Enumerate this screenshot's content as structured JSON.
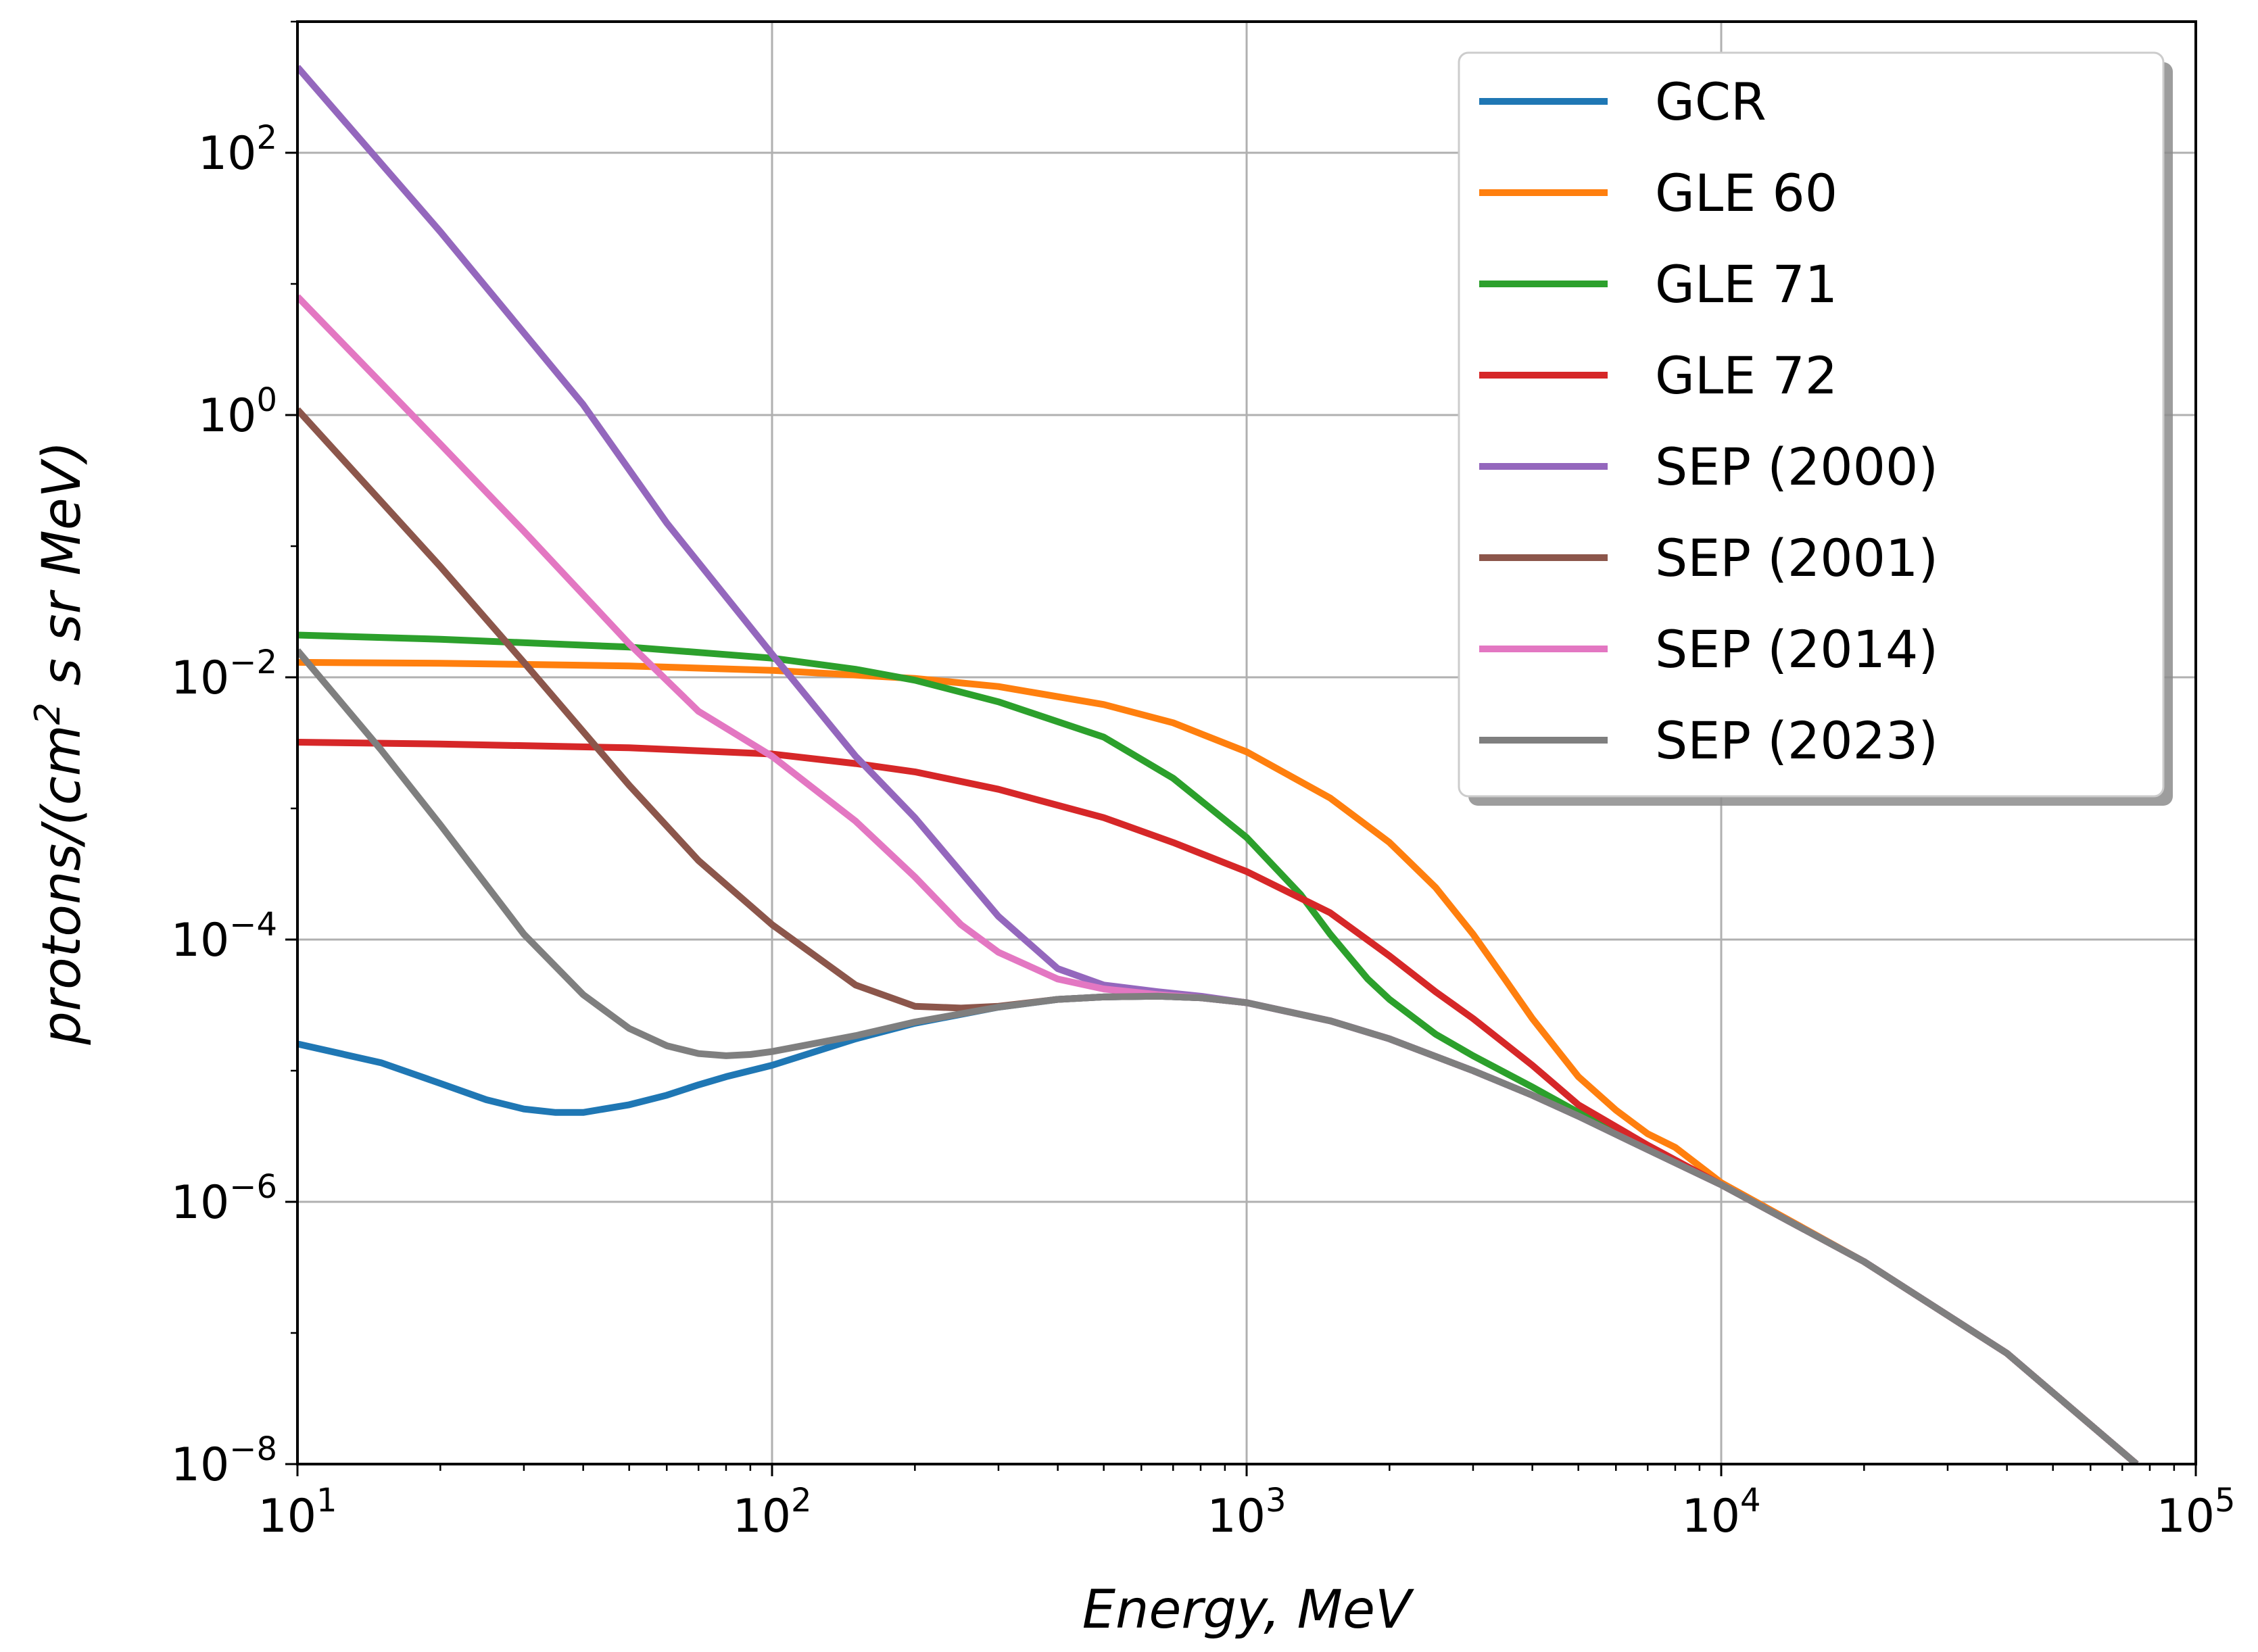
{
  "chart_data": {
    "type": "line",
    "title": "",
    "xlabel": "Energy, MeV",
    "ylabel": "protons/(cm2 s sr MeV)",
    "xscale": "log",
    "yscale": "log",
    "xlim": [
      10,
      100000
    ],
    "ylim": [
      1e-08,
      1000
    ],
    "grid": true,
    "legend_position": "top-right",
    "x_ticks": [
      {
        "value": 10,
        "base": "10",
        "exp": "1"
      },
      {
        "value": 100,
        "base": "10",
        "exp": "2"
      },
      {
        "value": 1000,
        "base": "10",
        "exp": "3"
      },
      {
        "value": 10000,
        "base": "10",
        "exp": "4"
      },
      {
        "value": 100000,
        "base": "10",
        "exp": "5"
      }
    ],
    "y_ticks": [
      {
        "value": 1e-08,
        "base": "10",
        "exp": "−8"
      },
      {
        "value": 1e-06,
        "base": "10",
        "exp": "−6"
      },
      {
        "value": 0.0001,
        "base": "10",
        "exp": "−4"
      },
      {
        "value": 0.01,
        "base": "10",
        "exp": "−2"
      },
      {
        "value": 1,
        "base": "10",
        "exp": "0"
      },
      {
        "value": 100,
        "base": "10",
        "exp": "2"
      }
    ],
    "series": [
      {
        "name": "GCR",
        "color": "#1f77b4",
        "x": [
          10,
          15,
          20,
          25,
          30,
          35,
          40,
          50,
          60,
          70,
          80,
          100,
          150,
          200,
          300,
          400,
          500,
          650,
          800,
          1000,
          1500,
          2000,
          3000,
          4000,
          5000,
          7000,
          10000,
          20000,
          40000,
          75000
        ],
        "y": [
          1.6e-05,
          1.15e-05,
          8e-06,
          6e-06,
          5.1e-06,
          4.8e-06,
          4.8e-06,
          5.5e-06,
          6.5e-06,
          7.8e-06,
          9e-06,
          1.1e-05,
          1.75e-05,
          2.3e-05,
          3.05e-05,
          3.5e-05,
          3.65e-05,
          3.7e-05,
          3.6e-05,
          3.3e-05,
          2.4e-05,
          1.75e-05,
          1e-05,
          6.5e-06,
          4.5e-06,
          2.5e-06,
          1.35e-06,
          3.5e-07,
          7e-08,
          1e-08
        ]
      },
      {
        "name": "GLE 60",
        "color": "#ff7f0e",
        "x": [
          10,
          20,
          50,
          100,
          200,
          300,
          500,
          700,
          1000,
          1500,
          2000,
          2500,
          3000,
          3500,
          4000,
          5000,
          6000,
          7000,
          8000,
          10000,
          20000,
          40000,
          75000
        ],
        "y": [
          0.013,
          0.0128,
          0.0122,
          0.0113,
          0.0098,
          0.0085,
          0.0062,
          0.0045,
          0.0027,
          0.0012,
          0.00055,
          0.00025,
          0.00011,
          5e-05,
          2.5e-05,
          9e-06,
          5e-06,
          3.3e-06,
          2.6e-06,
          1.4e-06,
          3.5e-07,
          7e-08,
          1e-08
        ]
      },
      {
        "name": "GLE 71",
        "color": "#2ca02c",
        "x": [
          10,
          20,
          50,
          100,
          150,
          200,
          300,
          500,
          700,
          1000,
          1300,
          1500,
          1800,
          2000,
          2500,
          3000,
          4000,
          5000,
          7000,
          10000,
          20000,
          40000,
          75000
        ],
        "y": [
          0.021,
          0.0195,
          0.017,
          0.014,
          0.0115,
          0.0095,
          0.0065,
          0.0035,
          0.0017,
          0.0006,
          0.00022,
          0.00011,
          5e-05,
          3.5e-05,
          1.9e-05,
          1.3e-05,
          7.5e-06,
          4.8e-06,
          2.6e-06,
          1.35e-06,
          3.5e-07,
          7e-08,
          1e-08
        ]
      },
      {
        "name": "GLE 72",
        "color": "#d62728",
        "x": [
          10,
          20,
          50,
          100,
          150,
          200,
          300,
          500,
          700,
          1000,
          1500,
          2000,
          2500,
          3000,
          4000,
          5000,
          7000,
          10000,
          20000,
          40000,
          75000
        ],
        "y": [
          0.0032,
          0.0031,
          0.0029,
          0.0026,
          0.0022,
          0.0019,
          0.0014,
          0.00085,
          0.00055,
          0.00033,
          0.00016,
          7.5e-05,
          4e-05,
          2.5e-05,
          1.1e-05,
          5.5e-06,
          2.7e-06,
          1.35e-06,
          3.5e-07,
          7e-08,
          1e-08
        ]
      },
      {
        "name": "SEP (2000)",
        "color": "#9467bd",
        "x": [
          10,
          20,
          40,
          60,
          100,
          150,
          200,
          300,
          400,
          500,
          650,
          800,
          1000,
          1500,
          2000,
          3000,
          4000,
          5000,
          7000,
          10000,
          20000,
          40000,
          75000
        ],
        "y": [
          450,
          25,
          1.2,
          0.15,
          0.015,
          0.0025,
          0.00085,
          0.00015,
          6e-05,
          4.5e-05,
          4e-05,
          3.7e-05,
          3.3e-05,
          2.4e-05,
          1.75e-05,
          1e-05,
          6.5e-06,
          4.5e-06,
          2.5e-06,
          1.35e-06,
          3.5e-07,
          7e-08,
          1e-08
        ]
      },
      {
        "name": "SEP (2001)",
        "color": "#8c564b",
        "x": [
          10,
          20,
          30,
          50,
          70,
          100,
          150,
          200,
          250,
          300,
          400,
          500,
          650,
          800,
          1000,
          1500,
          2000,
          3000,
          4000,
          5000,
          7000,
          10000,
          20000,
          40000,
          75000
        ],
        "y": [
          1.1,
          0.07,
          0.013,
          0.0015,
          0.0004,
          0.00013,
          4.5e-05,
          3.1e-05,
          3e-05,
          3.1e-05,
          3.5e-05,
          3.65e-05,
          3.7e-05,
          3.6e-05,
          3.3e-05,
          2.4e-05,
          1.75e-05,
          1e-05,
          6.5e-06,
          4.5e-06,
          2.5e-06,
          1.35e-06,
          3.5e-07,
          7e-08,
          1e-08
        ]
      },
      {
        "name": "SEP (2014)",
        "color": "#e377c2",
        "x": [
          10,
          20,
          30,
          50,
          70,
          100,
          150,
          200,
          250,
          300,
          400,
          500,
          650,
          800,
          1000,
          1500,
          2000,
          3000,
          4000,
          5000,
          7000,
          10000,
          20000,
          40000,
          75000
        ],
        "y": [
          8,
          0.6,
          0.13,
          0.018,
          0.0055,
          0.0025,
          0.0008,
          0.0003,
          0.00013,
          8e-05,
          5e-05,
          4.2e-05,
          3.8e-05,
          3.6e-05,
          3.3e-05,
          2.4e-05,
          1.75e-05,
          1e-05,
          6.5e-06,
          4.5e-06,
          2.5e-06,
          1.35e-06,
          3.5e-07,
          7e-08,
          1e-08
        ]
      },
      {
        "name": "SEP (2023)",
        "color": "#7f7f7f",
        "x": [
          10,
          15,
          20,
          30,
          40,
          50,
          60,
          70,
          80,
          90,
          100,
          150,
          200,
          300,
          400,
          500,
          650,
          800,
          1000,
          1500,
          2000,
          3000,
          4000,
          5000,
          7000,
          10000,
          20000,
          40000,
          75000
        ],
        "y": [
          0.016,
          0.0028,
          0.00075,
          0.00011,
          3.8e-05,
          2.1e-05,
          1.55e-05,
          1.35e-05,
          1.3e-05,
          1.33e-05,
          1.4e-05,
          1.85e-05,
          2.35e-05,
          3.05e-05,
          3.5e-05,
          3.65e-05,
          3.7e-05,
          3.6e-05,
          3.3e-05,
          2.4e-05,
          1.75e-05,
          1e-05,
          6.5e-06,
          4.5e-06,
          2.5e-06,
          1.35e-06,
          3.5e-07,
          7e-08,
          1e-08
        ]
      }
    ]
  }
}
